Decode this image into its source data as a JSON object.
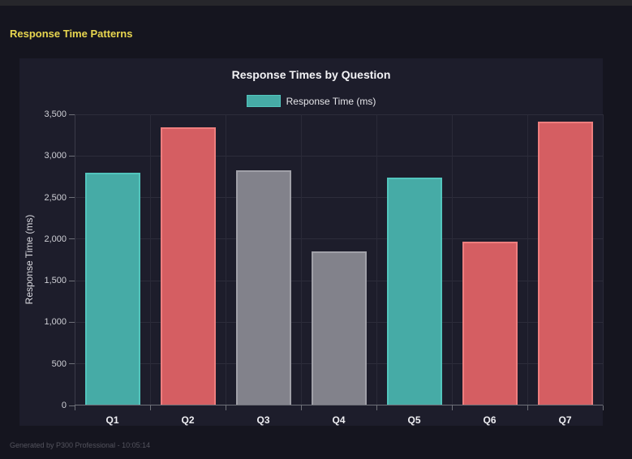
{
  "page": {
    "heading": "Response Time Patterns",
    "footer": "Generated by P300 Professional - 10:05:14"
  },
  "chart_data": {
    "type": "bar",
    "title": "Response Times by Question",
    "legend": {
      "label": "Response Time (ms)",
      "swatch_fill": "#46aba6",
      "swatch_border": "#52c5bd",
      "position": "top"
    },
    "categories": [
      "Q1",
      "Q2",
      "Q3",
      "Q4",
      "Q5",
      "Q6",
      "Q7"
    ],
    "series": [
      {
        "name": "Response Time (ms)",
        "values": [
          2790,
          3330,
          2815,
          1845,
          2730,
          1955,
          3400
        ]
      }
    ],
    "bar_styles": [
      {
        "fill": "#46aba6",
        "border": "#52c5bd"
      },
      {
        "fill": "#d55e62",
        "border": "#ee7e7e"
      },
      {
        "fill": "#82828b",
        "border": "#a0a0a8"
      },
      {
        "fill": "#82828b",
        "border": "#a0a0a8"
      },
      {
        "fill": "#46aba6",
        "border": "#52c5bd"
      },
      {
        "fill": "#d55e62",
        "border": "#ee7e7e"
      },
      {
        "fill": "#d55e62",
        "border": "#ee7e7e"
      }
    ],
    "xlabel": "",
    "ylabel": "Response Time (ms)",
    "ylim": [
      0,
      3500
    ],
    "ytick_step": 500,
    "ytick_labels": [
      "0",
      "500",
      "1,000",
      "1,500",
      "2,000",
      "2,500",
      "3,000",
      "3,500"
    ],
    "grid": true
  }
}
